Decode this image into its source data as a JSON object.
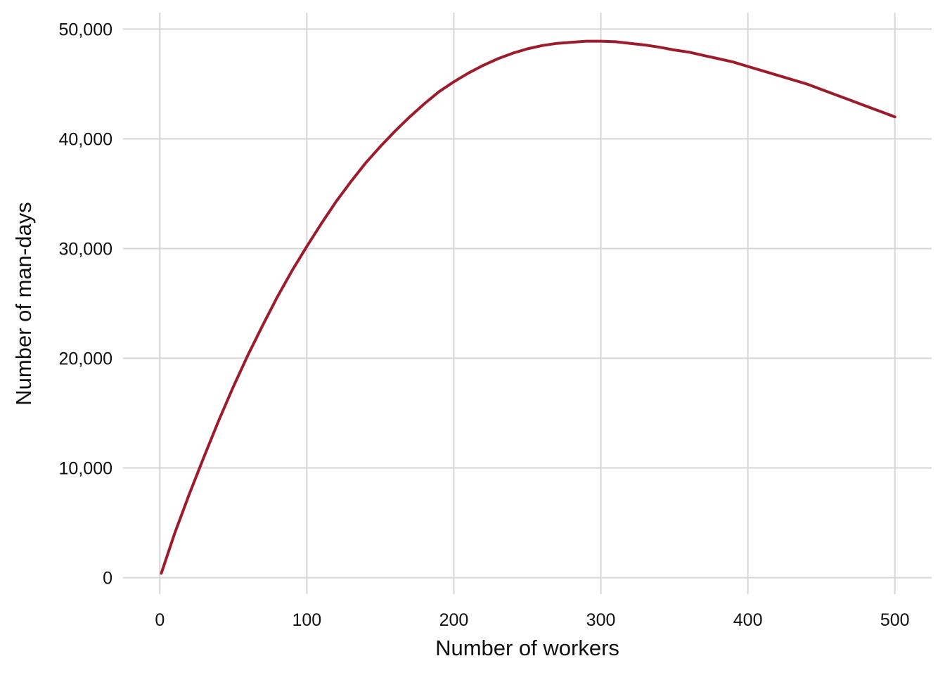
{
  "chart_data": {
    "type": "line",
    "title": "",
    "xlabel": "Number of workers",
    "ylabel": "Number of man-days",
    "xlim": [
      -25,
      525
    ],
    "ylim": [
      -1500,
      51500
    ],
    "grid": true,
    "legend": "none",
    "x_ticks": [
      0,
      100,
      200,
      300,
      400,
      500
    ],
    "x_tick_labels": [
      "0",
      "100",
      "200",
      "300",
      "400",
      "500"
    ],
    "y_ticks": [
      0,
      10000,
      20000,
      30000,
      40000,
      50000
    ],
    "y_tick_labels": [
      "0",
      "10,000",
      "20,000",
      "30,000",
      "40,000",
      "50,000"
    ],
    "series": [
      {
        "color": "#9e1b2c",
        "x": [
          1,
          10,
          20,
          30,
          40,
          50,
          60,
          70,
          80,
          90,
          100,
          110,
          120,
          130,
          140,
          150,
          160,
          170,
          180,
          190,
          200,
          210,
          220,
          230,
          240,
          250,
          260,
          270,
          280,
          290,
          300,
          310,
          320,
          330,
          340,
          350,
          360,
          370,
          380,
          390,
          400,
          410,
          420,
          430,
          440,
          450,
          460,
          470,
          480,
          490,
          500
        ],
        "y": [
          400,
          4000,
          7600,
          11000,
          14300,
          17400,
          20300,
          23000,
          25600,
          28000,
          30200,
          32300,
          34300,
          36100,
          37800,
          39300,
          40700,
          42000,
          43200,
          44300,
          45200,
          46000,
          46700,
          47300,
          47800,
          48200,
          48500,
          48700,
          48800,
          48900,
          48900,
          48850,
          48700,
          48550,
          48350,
          48100,
          47900,
          47600,
          47300,
          47000,
          46600,
          46200,
          45800,
          45400,
          45000,
          44500,
          44000,
          43500,
          43000,
          42500,
          42000
        ]
      }
    ]
  }
}
